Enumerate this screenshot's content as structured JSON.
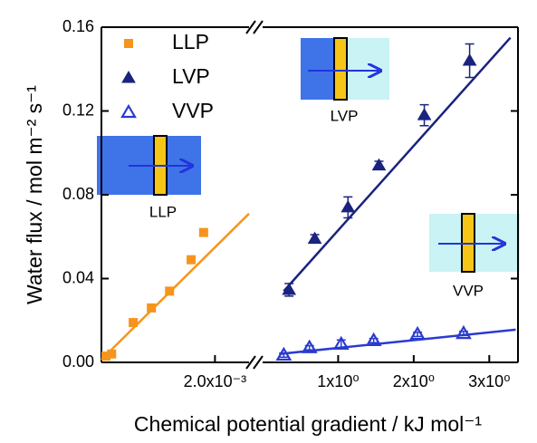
{
  "chart_data": {
    "type": "scatter",
    "y_label": "Water flux / mol m⁻² s⁻¹",
    "x_label": "Chemical potential gradient / kJ mol⁻¹",
    "ylim": [
      0,
      0.16
    ],
    "yticks": [
      {
        "value": 0,
        "label": "0.00"
      },
      {
        "value": 0.04,
        "label": "0.04"
      },
      {
        "value": 0.08,
        "label": "0.08"
      },
      {
        "value": 0.12,
        "label": "0.12"
      },
      {
        "value": 0.16,
        "label": "0.16"
      }
    ],
    "x_segments": [
      {
        "xlim": [
          0,
          0.0026
        ],
        "xticks": [
          {
            "value": 0.002,
            "label": "2.0x10⁻³"
          }
        ]
      },
      {
        "xlim": [
          0,
          3.38
        ],
        "xticks": [
          {
            "value": 1,
            "label": "1x10⁰"
          },
          {
            "value": 2,
            "label": "2x10⁰"
          },
          {
            "value": 3,
            "label": "3x10⁰"
          }
        ]
      }
    ],
    "series": [
      {
        "name": "LLP",
        "color": "#f7941d",
        "marker": "square",
        "segment": 0,
        "x": [
          8e-05,
          0.00018,
          0.00056,
          0.00088,
          0.0012,
          0.00158,
          0.0018
        ],
        "values": [
          0.003,
          0.004,
          0.019,
          0.026,
          0.034,
          0.049,
          0.062
        ],
        "fit": {
          "x": [
            0,
            0.0026
          ],
          "y": [
            0.0013,
            0.071
          ]
        }
      },
      {
        "name": "LVP",
        "color": "#1a237e",
        "marker": "triangle",
        "segment": 1,
        "x": [
          0.35,
          0.69,
          1.13,
          1.54,
          2.14,
          2.74
        ],
        "values": [
          0.0346,
          0.059,
          0.074,
          0.094,
          0.118,
          0.144
        ],
        "errors": [
          0.003,
          0.002,
          0.005,
          0.002,
          0.005,
          0.008
        ],
        "fit": {
          "x": [
            0.28,
            3.28
          ],
          "y": [
            0.034,
            0.155
          ]
        }
      },
      {
        "name": "VVP",
        "color": "#2a3bd0",
        "marker": "triangle-open",
        "segment": 1,
        "x": [
          0.28,
          0.62,
          1.04,
          1.47,
          2.05,
          2.66
        ],
        "values": [
          0.0035,
          0.007,
          0.0087,
          0.0104,
          0.0134,
          0.0138
        ],
        "errors": [
          0.001,
          0.001,
          0.002,
          0.001,
          0.001,
          0.001
        ],
        "fit": {
          "x": [
            0.22,
            3.35
          ],
          "y": [
            0.004,
            0.0156
          ]
        }
      }
    ],
    "insets": [
      {
        "label": "LLP"
      },
      {
        "label": "LVP"
      },
      {
        "label": "VVP"
      }
    ]
  }
}
